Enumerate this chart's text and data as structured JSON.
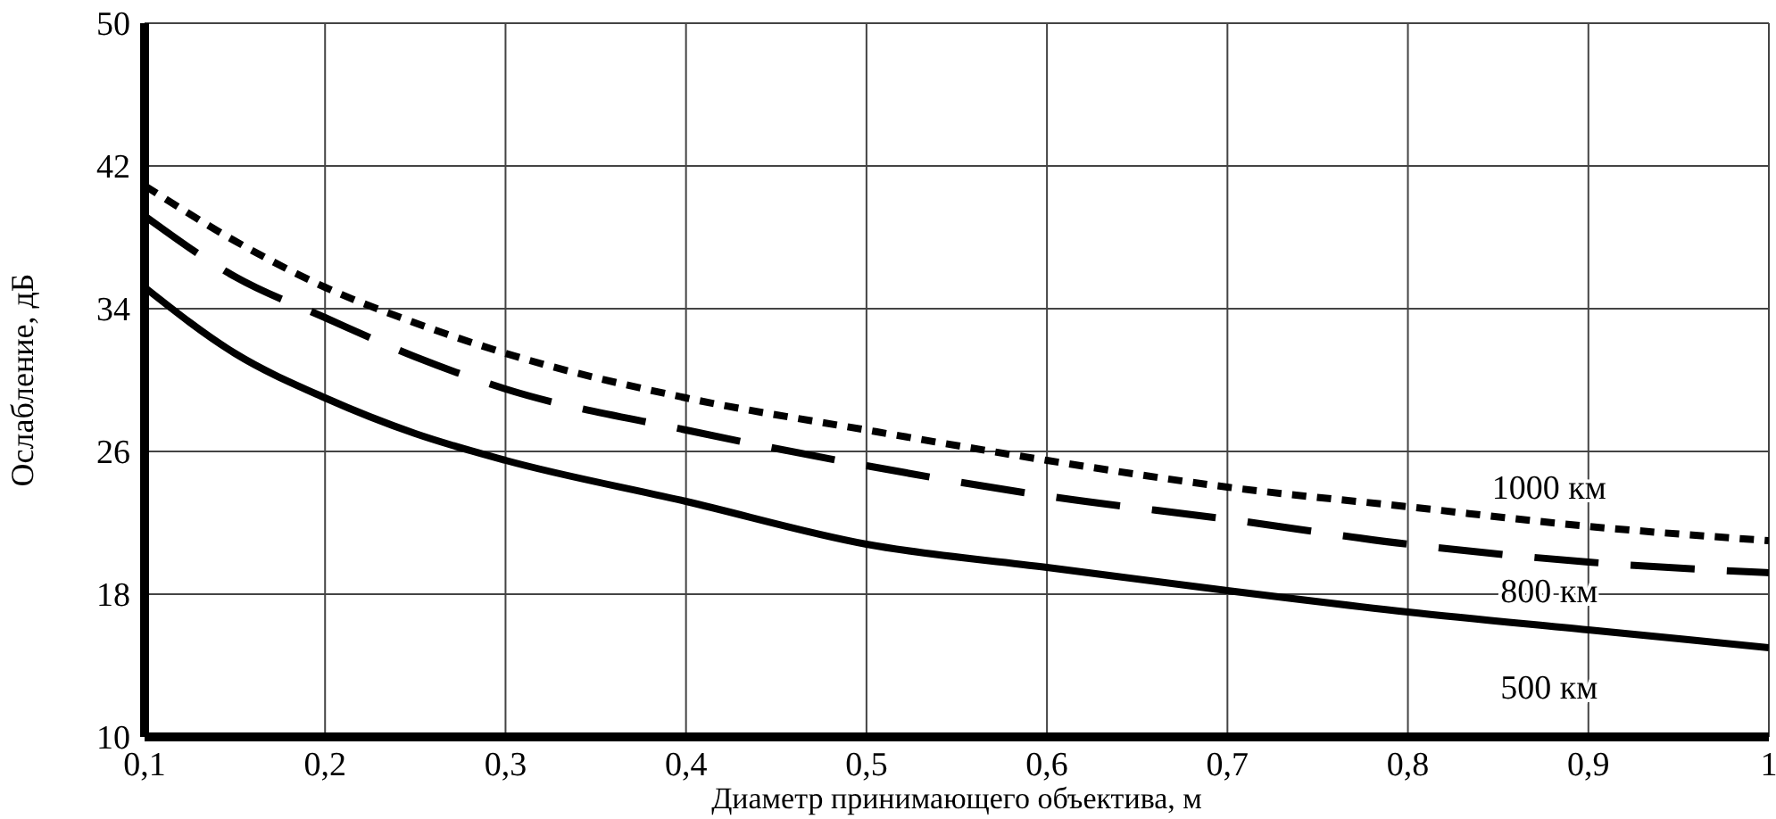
{
  "chart_data": {
    "type": "line",
    "xlabel": "Диаметр принимающего объектива, м",
    "ylabel": "Ослабление, дБ",
    "x": [
      0.1,
      0.15,
      0.2,
      0.25,
      0.3,
      0.4,
      0.5,
      0.6,
      0.7,
      0.8,
      0.9,
      1.0
    ],
    "series": [
      {
        "name": "500 км",
        "color": "#000000",
        "line_style": "solid",
        "values": [
          35.2,
          31.5,
          29,
          27,
          25.5,
          23.2,
          20.8,
          19.5,
          18.2,
          17,
          16,
          15
        ]
      },
      {
        "name": "800 км",
        "color": "#000000",
        "line_style": "dashed",
        "values": [
          39.2,
          35.8,
          33.5,
          31.3,
          29.5,
          27.2,
          25.2,
          23.5,
          22.2,
          20.8,
          19.8,
          19.2
        ]
      },
      {
        "name": "1000 км",
        "color": "#000000",
        "line_style": "dotted",
        "values": [
          40.9,
          37.8,
          35.2,
          33.2,
          31.5,
          29,
          27.2,
          25.5,
          24,
          22.9,
          21.8,
          21
        ]
      }
    ],
    "xlim": [
      0.1,
      1
    ],
    "xticks": [
      {
        "value": 0.1,
        "label": "0,1"
      },
      {
        "value": 0.2,
        "label": "0,2"
      },
      {
        "value": 0.3,
        "label": "0,3"
      },
      {
        "value": 0.4,
        "label": "0,4"
      },
      {
        "value": 0.5,
        "label": "0,5"
      },
      {
        "value": 0.6,
        "label": "0,6"
      },
      {
        "value": 0.7,
        "label": "0,7"
      },
      {
        "value": 0.8,
        "label": "0,8"
      },
      {
        "value": 0.9,
        "label": "0,9"
      },
      1
    ],
    "ylim": [
      10,
      50
    ],
    "yticks": [
      10,
      18,
      26,
      34,
      42,
      50
    ],
    "grid": true,
    "marker": "none"
  }
}
